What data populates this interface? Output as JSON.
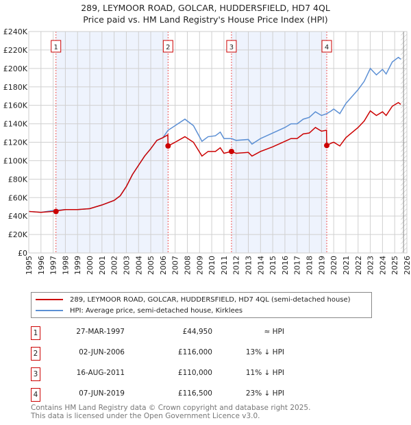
{
  "title_line1": "289, LEYMOOR ROAD, GOLCAR, HUDDERSFIELD, HD7 4QL",
  "title_line2": "Price paid vs. HM Land Registry's House Price Index (HPI)",
  "chart_data": {
    "type": "line",
    "title": "Price paid vs. HM Land Registry's House Price Index (HPI)",
    "xlim": [
      1995,
      2026
    ],
    "ylim": [
      0,
      240000
    ],
    "x_ticks": [
      "1995",
      "1996",
      "1997",
      "1998",
      "1999",
      "2000",
      "2001",
      "2002",
      "2003",
      "2004",
      "2005",
      "2006",
      "2007",
      "2008",
      "2009",
      "2010",
      "2011",
      "2012",
      "2013",
      "2014",
      "2015",
      "2016",
      "2017",
      "2018",
      "2019",
      "2020",
      "2021",
      "2022",
      "2023",
      "2024",
      "2025",
      "2026"
    ],
    "y_ticks": [
      "£0",
      "£20K",
      "£40K",
      "£60K",
      "£80K",
      "£100K",
      "£120K",
      "£140K",
      "£160K",
      "£180K",
      "£200K",
      "£220K",
      "£240K"
    ],
    "grid": true,
    "series": [
      {
        "name": "HPI: Average price, semi-detached house, Kirklees",
        "color": "#5b8fd4",
        "points": [
          [
            1995,
            45
          ],
          [
            1996,
            44
          ],
          [
            1997,
            46
          ],
          [
            1998,
            47
          ],
          [
            1999,
            47
          ],
          [
            2000,
            48
          ],
          [
            2001,
            52
          ],
          [
            2002,
            57
          ],
          [
            2002.5,
            62
          ],
          [
            2003,
            72
          ],
          [
            2003.5,
            85
          ],
          [
            2004,
            95
          ],
          [
            2004.5,
            105
          ],
          [
            2005,
            113
          ],
          [
            2005.5,
            122
          ],
          [
            2006,
            125
          ],
          [
            2006.42,
            133
          ],
          [
            2007,
            138
          ],
          [
            2007.8,
            145
          ],
          [
            2008.5,
            138
          ],
          [
            2009.2,
            121
          ],
          [
            2009.7,
            126
          ],
          [
            2010.3,
            127
          ],
          [
            2010.7,
            131
          ],
          [
            2011,
            124
          ],
          [
            2011.62,
            124
          ],
          [
            2012,
            122
          ],
          [
            2013,
            123
          ],
          [
            2013.3,
            118
          ],
          [
            2014,
            124
          ],
          [
            2015,
            130
          ],
          [
            2016,
            136
          ],
          [
            2016.5,
            140
          ],
          [
            2017,
            140
          ],
          [
            2017.5,
            145
          ],
          [
            2018,
            147
          ],
          [
            2018.5,
            153
          ],
          [
            2019,
            149
          ],
          [
            2019.43,
            151
          ],
          [
            2019.8,
            154
          ],
          [
            2020,
            156
          ],
          [
            2020.5,
            151
          ],
          [
            2021,
            162
          ],
          [
            2022,
            177
          ],
          [
            2022.5,
            186
          ],
          [
            2023,
            200
          ],
          [
            2023.5,
            193
          ],
          [
            2024,
            199
          ],
          [
            2024.3,
            194
          ],
          [
            2024.8,
            207
          ],
          [
            2025.3,
            212
          ],
          [
            2025.5,
            210
          ]
        ]
      },
      {
        "name": "289, LEYMOOR ROAD, GOLCAR, HUDDERSFIELD, HD7 4QL (semi-detached house)",
        "color": "#cc0000",
        "points": [
          [
            1995,
            45
          ],
          [
            1996,
            44
          ],
          [
            1997,
            45
          ],
          [
            1998,
            47
          ],
          [
            1999,
            47
          ],
          [
            2000,
            48
          ],
          [
            2001,
            52
          ],
          [
            2002,
            57
          ],
          [
            2002.5,
            62
          ],
          [
            2003,
            72
          ],
          [
            2003.5,
            85
          ],
          [
            2004,
            95
          ],
          [
            2004.5,
            105
          ],
          [
            2005,
            113
          ],
          [
            2005.5,
            122
          ],
          [
            2006,
            125
          ],
          [
            2006.4,
            128
          ],
          [
            2006.42,
            116
          ],
          [
            2007,
            120
          ],
          [
            2007.8,
            126
          ],
          [
            2008.5,
            120
          ],
          [
            2009.2,
            105
          ],
          [
            2009.7,
            110
          ],
          [
            2010.3,
            110
          ],
          [
            2010.7,
            114
          ],
          [
            2011,
            108
          ],
          [
            2011.62,
            110
          ],
          [
            2012,
            108
          ],
          [
            2013,
            109
          ],
          [
            2013.3,
            105
          ],
          [
            2014,
            110
          ],
          [
            2015,
            115
          ],
          [
            2016,
            121
          ],
          [
            2016.5,
            124
          ],
          [
            2017,
            124
          ],
          [
            2017.5,
            129
          ],
          [
            2018,
            130
          ],
          [
            2018.5,
            136
          ],
          [
            2019,
            132
          ],
          [
            2019.41,
            133
          ],
          [
            2019.43,
            116.5
          ],
          [
            2019.8,
            119
          ],
          [
            2020,
            120
          ],
          [
            2020.5,
            116
          ],
          [
            2021,
            125
          ],
          [
            2022,
            136
          ],
          [
            2022.5,
            143
          ],
          [
            2023,
            154
          ],
          [
            2023.5,
            149
          ],
          [
            2024,
            153
          ],
          [
            2024.3,
            149
          ],
          [
            2024.8,
            159
          ],
          [
            2025.3,
            163
          ],
          [
            2025.5,
            161
          ]
        ]
      }
    ],
    "sales": [
      {
        "label": "1",
        "x": 1997.23,
        "y": 44.95
      },
      {
        "label": "2",
        "x": 2006.42,
        "y": 116
      },
      {
        "label": "3",
        "x": 2011.62,
        "y": 110
      },
      {
        "label": "4",
        "x": 2019.43,
        "y": 116.5
      }
    ],
    "shaded_ranges": [
      [
        1997.23,
        2006.42
      ],
      [
        2011.62,
        2019.43
      ]
    ],
    "hatched_from": 2025.5,
    "legend_placement": "below"
  },
  "legend": {
    "property": "289, LEYMOOR ROAD, GOLCAR, HUDDERSFIELD, HD7 4QL (semi-detached house)",
    "hpi": "HPI: Average price, semi-detached house, Kirklees"
  },
  "transactions": [
    {
      "num": "1",
      "date": "27-MAR-1997",
      "price": "£44,950",
      "hpi": "≈ HPI"
    },
    {
      "num": "2",
      "date": "02-JUN-2006",
      "price": "£116,000",
      "hpi": "13% ↓ HPI"
    },
    {
      "num": "3",
      "date": "16-AUG-2011",
      "price": "£110,000",
      "hpi": "11% ↓ HPI"
    },
    {
      "num": "4",
      "date": "07-JUN-2019",
      "price": "£116,500",
      "hpi": "23% ↓ HPI"
    }
  ],
  "footer": {
    "line1": "Contains HM Land Registry data © Crown copyright and database right 2025.",
    "line2": "This data is licensed under the Open Government Licence v3.0."
  }
}
